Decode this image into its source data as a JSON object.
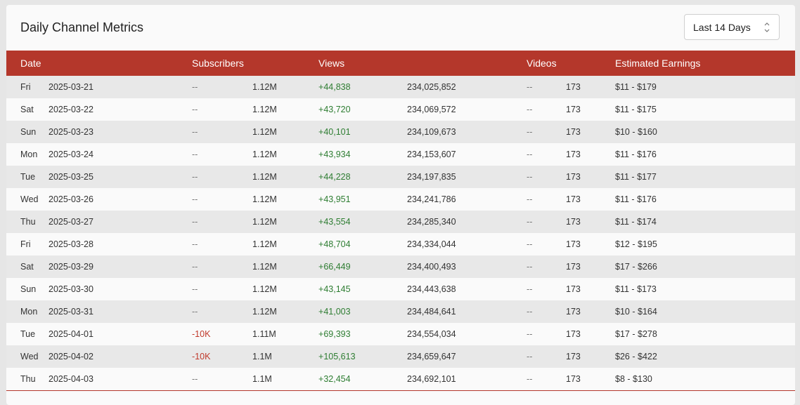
{
  "header": {
    "title": "Daily Channel Metrics",
    "range_select": "Last 14 Days"
  },
  "table": {
    "columns": [
      "Date",
      "Subscribers",
      "Views",
      "Videos",
      "Estimated Earnings"
    ],
    "rows": [
      {
        "day": "Fri",
        "date": "2025-03-21",
        "sub_change": "--",
        "subs": "1.12M",
        "view_change": "+44,838",
        "views": "234,025,852",
        "video_change": "--",
        "videos": "173",
        "earnings": "$11 - $179"
      },
      {
        "day": "Sat",
        "date": "2025-03-22",
        "sub_change": "--",
        "subs": "1.12M",
        "view_change": "+43,720",
        "views": "234,069,572",
        "video_change": "--",
        "videos": "173",
        "earnings": "$11 - $175"
      },
      {
        "day": "Sun",
        "date": "2025-03-23",
        "sub_change": "--",
        "subs": "1.12M",
        "view_change": "+40,101",
        "views": "234,109,673",
        "video_change": "--",
        "videos": "173",
        "earnings": "$10 - $160"
      },
      {
        "day": "Mon",
        "date": "2025-03-24",
        "sub_change": "--",
        "subs": "1.12M",
        "view_change": "+43,934",
        "views": "234,153,607",
        "video_change": "--",
        "videos": "173",
        "earnings": "$11 - $176"
      },
      {
        "day": "Tue",
        "date": "2025-03-25",
        "sub_change": "--",
        "subs": "1.12M",
        "view_change": "+44,228",
        "views": "234,197,835",
        "video_change": "--",
        "videos": "173",
        "earnings": "$11 - $177"
      },
      {
        "day": "Wed",
        "date": "2025-03-26",
        "sub_change": "--",
        "subs": "1.12M",
        "view_change": "+43,951",
        "views": "234,241,786",
        "video_change": "--",
        "videos": "173",
        "earnings": "$11 - $176"
      },
      {
        "day": "Thu",
        "date": "2025-03-27",
        "sub_change": "--",
        "subs": "1.12M",
        "view_change": "+43,554",
        "views": "234,285,340",
        "video_change": "--",
        "videos": "173",
        "earnings": "$11 - $174"
      },
      {
        "day": "Fri",
        "date": "2025-03-28",
        "sub_change": "--",
        "subs": "1.12M",
        "view_change": "+48,704",
        "views": "234,334,044",
        "video_change": "--",
        "videos": "173",
        "earnings": "$12 - $195"
      },
      {
        "day": "Sat",
        "date": "2025-03-29",
        "sub_change": "--",
        "subs": "1.12M",
        "view_change": "+66,449",
        "views": "234,400,493",
        "video_change": "--",
        "videos": "173",
        "earnings": "$17 - $266"
      },
      {
        "day": "Sun",
        "date": "2025-03-30",
        "sub_change": "--",
        "subs": "1.12M",
        "view_change": "+43,145",
        "views": "234,443,638",
        "video_change": "--",
        "videos": "173",
        "earnings": "$11 - $173"
      },
      {
        "day": "Mon",
        "date": "2025-03-31",
        "sub_change": "--",
        "subs": "1.12M",
        "view_change": "+41,003",
        "views": "234,484,641",
        "video_change": "--",
        "videos": "173",
        "earnings": "$10 - $164"
      },
      {
        "day": "Tue",
        "date": "2025-04-01",
        "sub_change": "-10K",
        "subs": "1.11M",
        "view_change": "+69,393",
        "views": "234,554,034",
        "video_change": "--",
        "videos": "173",
        "earnings": "$17 - $278"
      },
      {
        "day": "Wed",
        "date": "2025-04-02",
        "sub_change": "-10K",
        "subs": "1.1M",
        "view_change": "+105,613",
        "views": "234,659,647",
        "video_change": "--",
        "videos": "173",
        "earnings": "$26 - $422"
      },
      {
        "day": "Thu",
        "date": "2025-04-03",
        "sub_change": "--",
        "subs": "1.1M",
        "view_change": "+32,454",
        "views": "234,692,101",
        "video_change": "--",
        "videos": "173",
        "earnings": "$8 - $130"
      }
    ]
  },
  "colors": {
    "header_bg": "#b4372b",
    "positive": "#2e7d32",
    "negative": "#c0392b"
  }
}
